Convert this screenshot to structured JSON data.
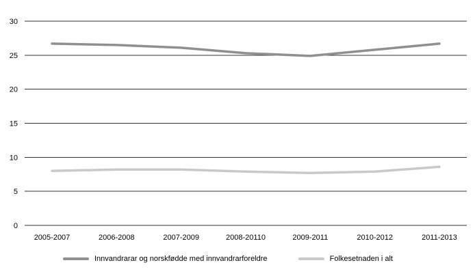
{
  "chart_data": {
    "type": "line",
    "title": "",
    "xlabel": "",
    "ylabel": "",
    "categories": [
      "2005-2007",
      "2006-2008",
      "2007-2009",
      "2008-20110",
      "2009-2011",
      "2010-2012",
      "2011-2013"
    ],
    "series": [
      {
        "name": "Innvandrarar og norskfødde med innvandrarforeldre",
        "color": "#8f8f8f",
        "values": [
          26.7,
          26.5,
          26.1,
          25.3,
          24.9,
          25.8,
          26.7
        ]
      },
      {
        "name": "Folkesetnaden i alt",
        "color": "#c9c9c9",
        "values": [
          8.0,
          8.2,
          8.2,
          7.9,
          7.7,
          7.9,
          8.6
        ]
      }
    ],
    "ylim": [
      0,
      30
    ],
    "ytick_step": 5,
    "yticks": [
      0,
      5,
      10,
      15,
      20,
      25,
      30
    ],
    "grid": true,
    "gridline_color": "#333333",
    "legend_position": "bottom"
  }
}
